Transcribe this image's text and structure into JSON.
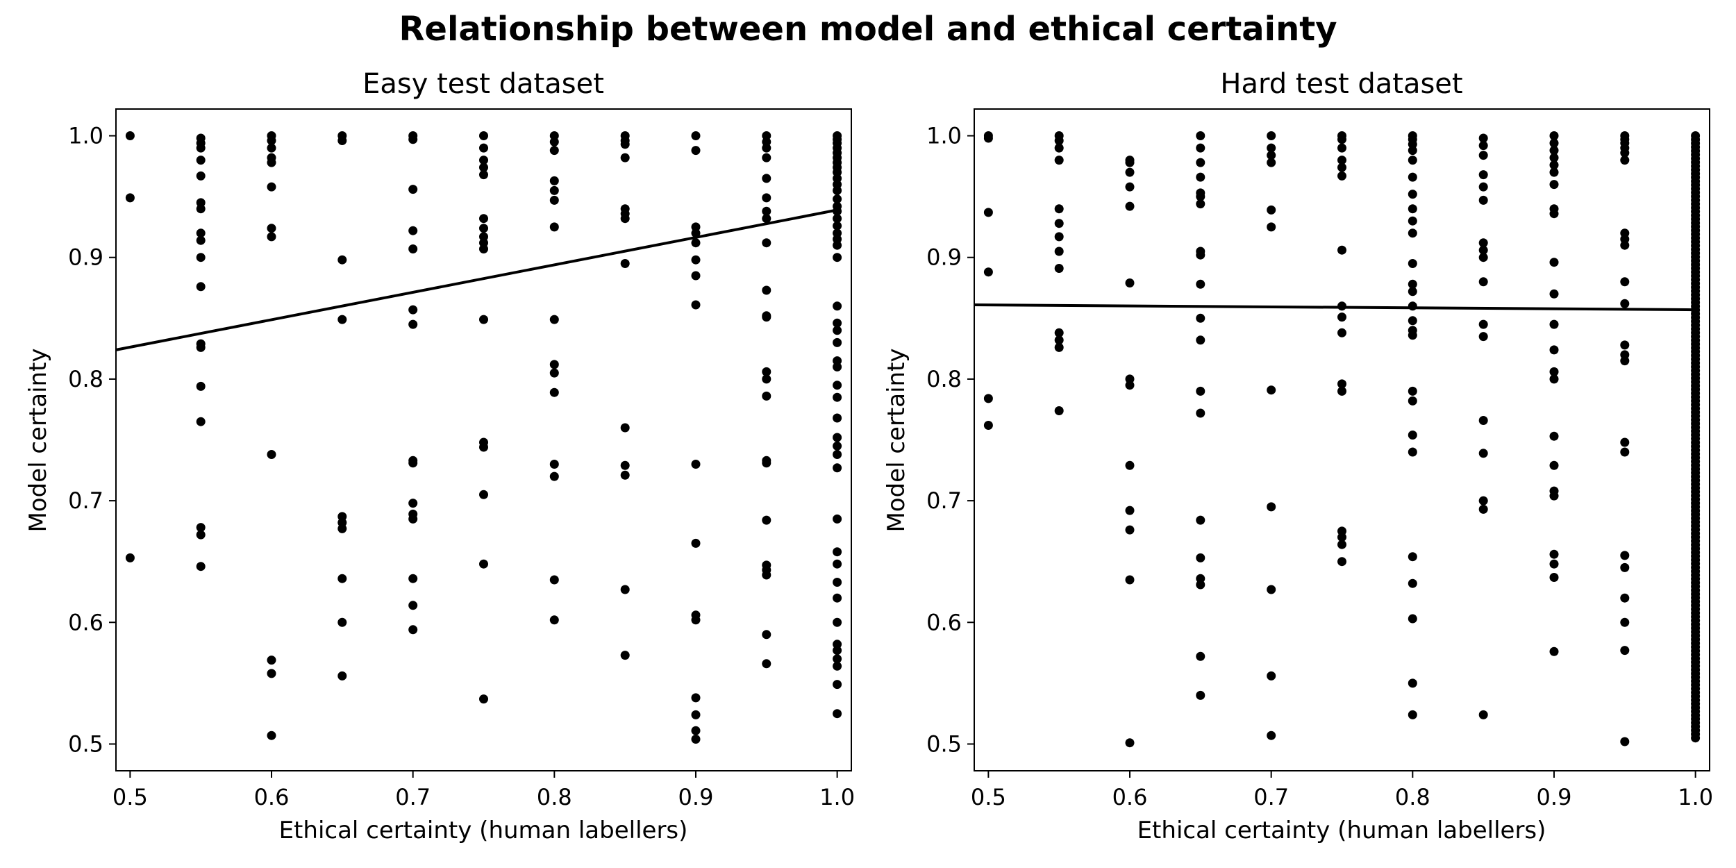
{
  "figure_title": "Relationship between model and ethical certainty",
  "chart_data": [
    {
      "type": "scatter",
      "title": "Easy test dataset",
      "xlabel": "Ethical certainty (human labellers)",
      "ylabel": "Model certainty",
      "xlim": [
        0.49,
        1.01
      ],
      "ylim": [
        0.478,
        1.022
      ],
      "xticks": [
        0.5,
        0.6,
        0.7,
        0.8,
        0.9,
        1.0
      ],
      "yticks": [
        0.5,
        0.6,
        0.7,
        0.8,
        0.9,
        1.0
      ],
      "xtick_labels": [
        "0.5",
        "0.6",
        "0.7",
        "0.8",
        "0.9",
        "1.0"
      ],
      "ytick_labels": [
        "0.5",
        "0.6",
        "0.7",
        "0.8",
        "0.9",
        "1.0"
      ],
      "point_color": "#000000",
      "fit_line": {
        "x": [
          0.49,
          1.0
        ],
        "y": [
          0.824,
          0.939
        ]
      },
      "points": [
        {
          "x": 0.5,
          "ys": [
            1.0,
            0.949,
            0.653
          ]
        },
        {
          "x": 0.55,
          "ys": [
            0.998,
            0.994,
            0.99,
            0.98,
            0.967,
            0.945,
            0.94,
            0.92,
            0.914,
            0.9,
            0.876,
            0.829,
            0.826,
            0.794,
            0.765,
            0.678,
            0.672,
            0.646
          ]
        },
        {
          "x": 0.6,
          "ys": [
            1.0,
            0.996,
            0.99,
            0.982,
            0.978,
            0.958,
            0.924,
            0.917,
            0.738,
            0.569,
            0.558,
            0.507
          ]
        },
        {
          "x": 0.65,
          "ys": [
            1.0,
            0.996,
            0.898,
            0.849,
            0.687,
            0.682,
            0.677,
            0.636,
            0.6,
            0.556
          ]
        },
        {
          "x": 0.7,
          "ys": [
            1.0,
            0.997,
            0.956,
            0.922,
            0.907,
            0.857,
            0.845,
            0.733,
            0.731,
            0.698,
            0.689,
            0.685,
            0.636,
            0.614,
            0.594
          ]
        },
        {
          "x": 0.75,
          "ys": [
            1.0,
            0.99,
            0.98,
            0.974,
            0.968,
            0.932,
            0.924,
            0.917,
            0.912,
            0.907,
            0.849,
            0.748,
            0.744,
            0.705,
            0.648,
            0.537
          ]
        },
        {
          "x": 0.8,
          "ys": [
            1.0,
            0.995,
            0.988,
            0.963,
            0.955,
            0.947,
            0.925,
            0.849,
            0.812,
            0.805,
            0.789,
            0.73,
            0.72,
            0.635,
            0.602
          ]
        },
        {
          "x": 0.85,
          "ys": [
            1.0,
            0.996,
            0.993,
            0.982,
            0.94,
            0.936,
            0.932,
            0.895,
            0.76,
            0.729,
            0.721,
            0.627,
            0.573
          ]
        },
        {
          "x": 0.9,
          "ys": [
            1.0,
            0.988,
            0.925,
            0.92,
            0.912,
            0.898,
            0.885,
            0.861,
            0.73,
            0.665,
            0.606,
            0.602,
            0.538,
            0.524,
            0.511,
            0.504
          ]
        },
        {
          "x": 0.95,
          "ys": [
            1.0,
            0.995,
            0.99,
            0.982,
            0.965,
            0.949,
            0.938,
            0.932,
            0.912,
            0.873,
            0.852,
            0.851,
            0.806,
            0.8,
            0.786,
            0.733,
            0.731,
            0.684,
            0.647,
            0.643,
            0.639,
            0.59,
            0.566
          ]
        },
        {
          "x": 1.0,
          "ys": [
            1.0,
            0.997,
            0.994,
            0.99,
            0.986,
            0.982,
            0.978,
            0.974,
            0.97,
            0.965,
            0.96,
            0.955,
            0.948,
            0.942,
            0.938,
            0.932,
            0.926,
            0.92,
            0.915,
            0.91,
            0.9,
            0.86,
            0.846,
            0.84,
            0.83,
            0.815,
            0.81,
            0.795,
            0.785,
            0.768,
            0.752,
            0.745,
            0.738,
            0.727,
            0.685,
            0.658,
            0.648,
            0.633,
            0.62,
            0.6,
            0.582,
            0.577,
            0.57,
            0.564,
            0.549,
            0.525
          ]
        }
      ]
    },
    {
      "type": "scatter",
      "title": "Hard test dataset",
      "xlabel": "Ethical certainty (human labellers)",
      "ylabel": "Model certainty",
      "xlim": [
        0.49,
        1.01
      ],
      "ylim": [
        0.478,
        1.022
      ],
      "xticks": [
        0.5,
        0.6,
        0.7,
        0.8,
        0.9,
        1.0
      ],
      "yticks": [
        0.5,
        0.6,
        0.7,
        0.8,
        0.9,
        1.0
      ],
      "xtick_labels": [
        "0.5",
        "0.6",
        "0.7",
        "0.8",
        "0.9",
        "1.0"
      ],
      "ytick_labels": [
        "0.5",
        "0.6",
        "0.7",
        "0.8",
        "0.9",
        "1.0"
      ],
      "point_color": "#000000",
      "fit_line": {
        "x": [
          0.49,
          1.0
        ],
        "y": [
          0.861,
          0.857
        ]
      },
      "points": [
        {
          "x": 0.5,
          "ys": [
            1.0,
            0.998,
            0.937,
            0.888,
            0.784,
            0.762
          ]
        },
        {
          "x": 0.55,
          "ys": [
            1.0,
            0.996,
            0.99,
            0.98,
            0.94,
            0.928,
            0.917,
            0.905,
            0.891,
            0.838,
            0.832,
            0.826,
            0.774
          ]
        },
        {
          "x": 0.6,
          "ys": [
            0.98,
            0.978,
            0.97,
            0.958,
            0.942,
            0.879,
            0.8,
            0.795,
            0.729,
            0.692,
            0.676,
            0.635,
            0.501
          ]
        },
        {
          "x": 0.65,
          "ys": [
            1.0,
            0.99,
            0.978,
            0.966,
            0.953,
            0.95,
            0.944,
            0.905,
            0.902,
            0.878,
            0.85,
            0.832,
            0.79,
            0.772,
            0.684,
            0.653,
            0.636,
            0.631,
            0.572,
            0.54
          ]
        },
        {
          "x": 0.7,
          "ys": [
            1.0,
            0.99,
            0.984,
            0.978,
            0.939,
            0.925,
            0.791,
            0.695,
            0.627,
            0.556,
            0.507
          ]
        },
        {
          "x": 0.75,
          "ys": [
            1.0,
            0.997,
            0.99,
            0.98,
            0.974,
            0.967,
            0.906,
            0.86,
            0.851,
            0.838,
            0.796,
            0.79,
            0.675,
            0.67,
            0.664,
            0.65
          ]
        },
        {
          "x": 0.8,
          "ys": [
            1.0,
            0.997,
            0.993,
            0.988,
            0.98,
            0.966,
            0.952,
            0.94,
            0.93,
            0.92,
            0.895,
            0.878,
            0.872,
            0.86,
            0.848,
            0.84,
            0.836,
            0.79,
            0.782,
            0.754,
            0.74,
            0.654,
            0.632,
            0.603,
            0.55,
            0.524
          ]
        },
        {
          "x": 0.85,
          "ys": [
            0.998,
            0.992,
            0.984,
            0.968,
            0.958,
            0.947,
            0.912,
            0.906,
            0.9,
            0.88,
            0.845,
            0.835,
            0.766,
            0.739,
            0.7,
            0.693,
            0.524
          ]
        },
        {
          "x": 0.9,
          "ys": [
            1.0,
            0.994,
            0.988,
            0.982,
            0.976,
            0.97,
            0.96,
            0.94,
            0.936,
            0.896,
            0.87,
            0.845,
            0.824,
            0.806,
            0.8,
            0.753,
            0.729,
            0.708,
            0.704,
            0.656,
            0.648,
            0.637,
            0.576
          ]
        },
        {
          "x": 0.95,
          "ys": [
            1.0,
            0.997,
            0.994,
            0.99,
            0.986,
            0.98,
            0.92,
            0.915,
            0.91,
            0.88,
            0.862,
            0.828,
            0.82,
            0.815,
            0.748,
            0.74,
            0.655,
            0.645,
            0.62,
            0.6,
            0.577,
            0.502
          ]
        }
      ],
      "points_band": {
        "x": 1.0,
        "count": 160,
        "range": [
          0.505,
          1.0
        ]
      }
    }
  ]
}
